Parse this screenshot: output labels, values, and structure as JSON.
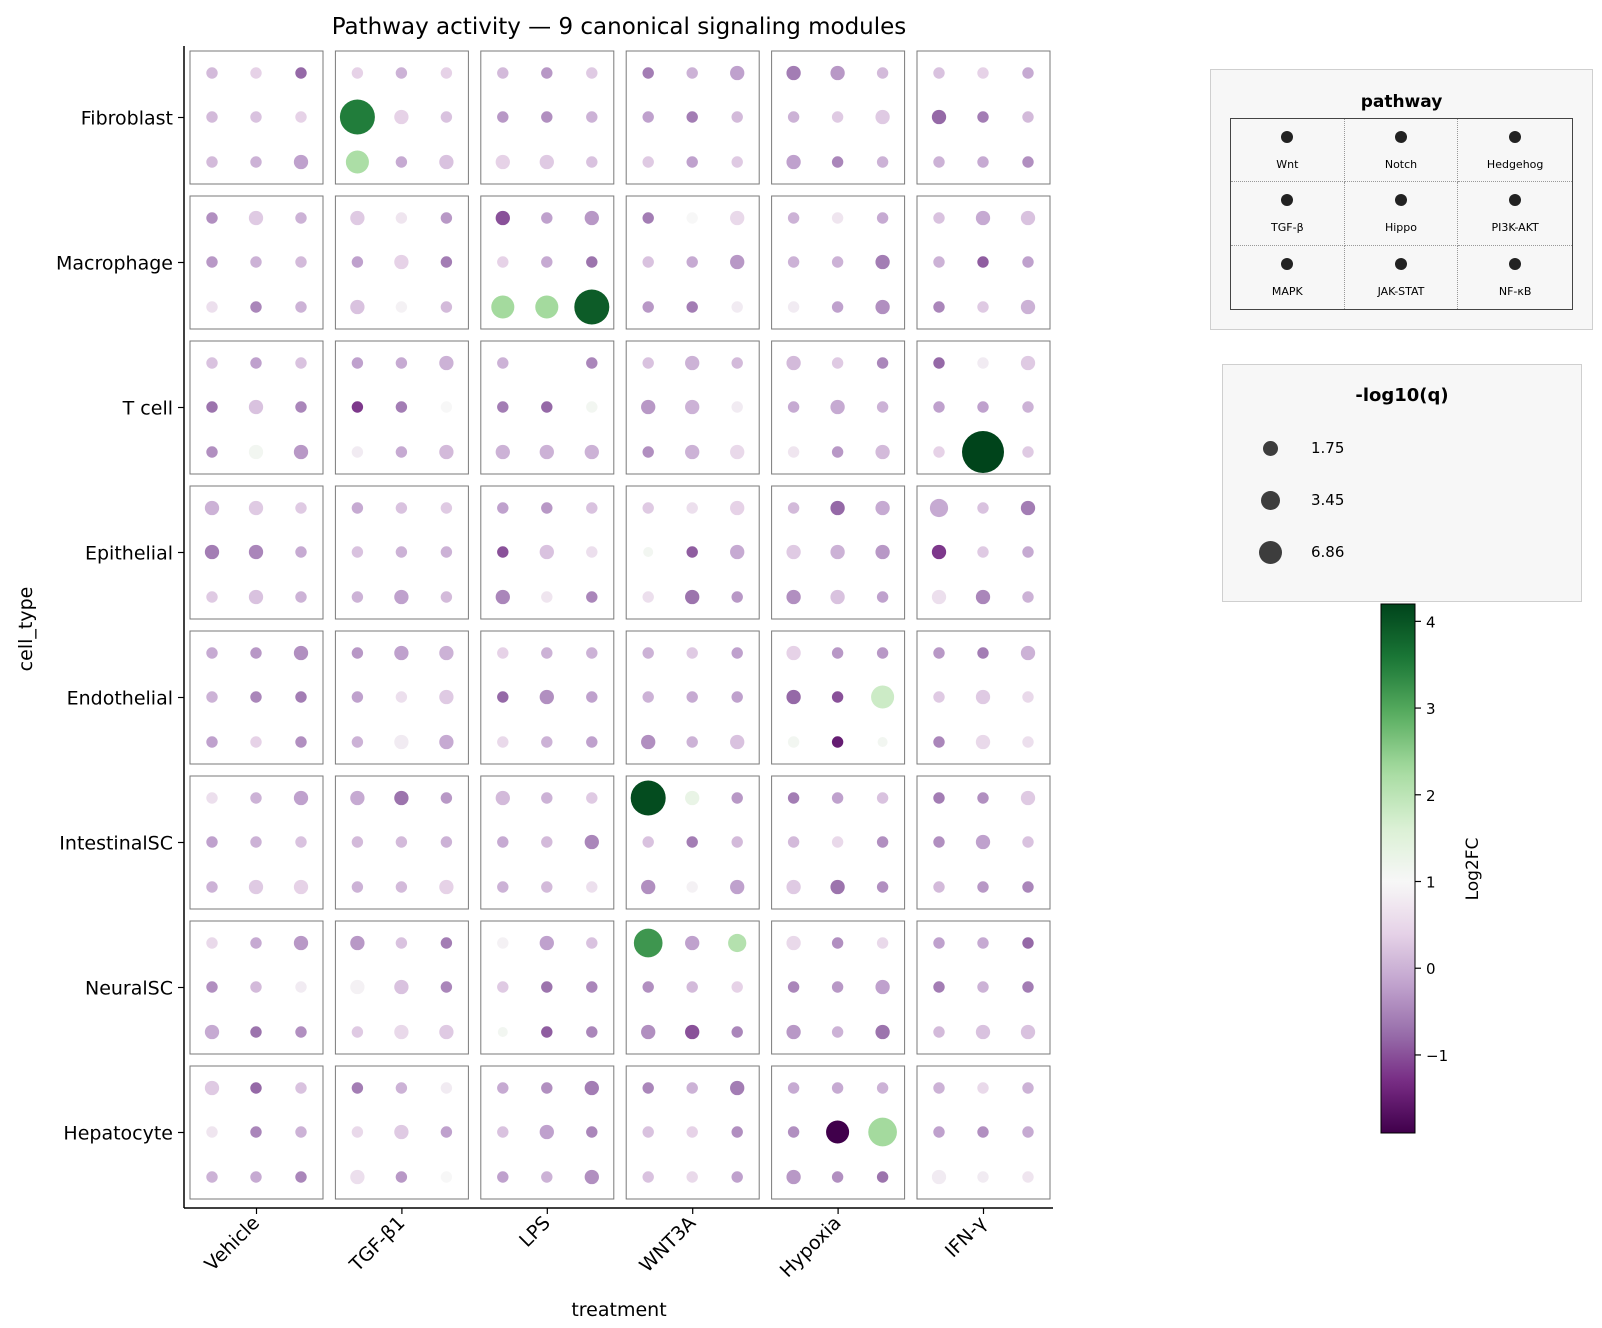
{
  "chart_data": {
    "type": "dot-matrix",
    "title": "Pathway activity — 9 canonical signaling modules",
    "xlabel": "treatment",
    "ylabel": "cell_type",
    "treatments": [
      "Vehicle",
      "TGF-β1",
      "LPS",
      "WNT3A",
      "Hypoxia",
      "IFN-γ"
    ],
    "cell_types": [
      "Fibroblast",
      "Macrophage",
      "T cell",
      "Epithelial",
      "Endothelial",
      "IntestinalSC",
      "NeuralSC",
      "Hepatocyte"
    ],
    "pathways": [
      "Wnt",
      "Notch",
      "Hedgehog",
      "TGF-β",
      "Hippo",
      "PI3K-AKT",
      "MAPK",
      "JAK-STAT",
      "NF-κB"
    ],
    "pathway_legend_title": "pathway",
    "size_legend_title": "-log10(q)",
    "size_legend_values": [
      1.75,
      3.45,
      6.86
    ],
    "size_range": [
      1,
      8
    ],
    "colorbar_label": "Log2FC",
    "color_range": [
      -1.9,
      4.2
    ],
    "colorbar_ticks": [
      -1,
      0,
      1,
      2,
      3,
      4
    ],
    "colormap": [
      "#40004b",
      "#762a83",
      "#9970ab",
      "#c2a5cf",
      "#e7d4e8",
      "#f7f7f7",
      "#d9f0d3",
      "#a6dba0",
      "#5aae61",
      "#1b7837",
      "#00441b"
    ],
    "lfc": [
      [
        [
          0.1,
          0.4,
          -0.8,
          0.1,
          0.2,
          0.4,
          0.1,
          0.0,
          -0.2
        ],
        [
          0.4,
          0.0,
          0.4,
          3.5,
          0.4,
          0.2,
          2.2,
          -0.1,
          0.2
        ],
        [
          0.1,
          -0.3,
          0.3,
          -0.3,
          -0.4,
          0.0,
          0.4,
          0.3,
          0.2
        ],
        [
          -0.6,
          0.0,
          -0.2,
          -0.2,
          -0.6,
          0.1,
          0.3,
          -0.2,
          0.3
        ],
        [
          -0.6,
          -0.3,
          0.1,
          0.0,
          0.3,
          0.3,
          -0.2,
          -0.5,
          0.0
        ],
        [
          0.2,
          0.4,
          -0.1,
          -0.8,
          -0.6,
          0.1,
          0.0,
          -0.1,
          -0.4
        ]
      ],
      [
        [
          -0.4,
          0.3,
          0.0,
          -0.3,
          0.0,
          0.1,
          0.6,
          -0.5,
          0.0
        ],
        [
          0.3,
          0.7,
          -0.3,
          -0.2,
          0.4,
          -0.6,
          0.2,
          0.9,
          0.1
        ],
        [
          -1.0,
          -0.2,
          -0.3,
          0.4,
          -0.1,
          -0.7,
          2.3,
          2.3,
          3.9
        ],
        [
          -0.6,
          1.0,
          0.5,
          0.2,
          -0.1,
          -0.3,
          -0.3,
          -0.6,
          0.8
        ],
        [
          0.0,
          0.7,
          -0.1,
          0.0,
          0.0,
          -0.6,
          0.8,
          -0.2,
          -0.4
        ],
        [
          0.2,
          -0.1,
          0.2,
          0.0,
          -0.9,
          -0.2,
          -0.5,
          0.3,
          0.0
        ]
      ],
      [
        [
          0.2,
          -0.2,
          0.2,
          -0.7,
          0.2,
          -0.5,
          -0.4,
          1.1,
          -0.3
        ],
        [
          -0.2,
          -0.1,
          0.0,
          -1.2,
          -0.6,
          1.0,
          0.8,
          -0.1,
          0.1
        ],
        [
          0.0,
          1.0,
          -0.5,
          -0.6,
          -0.8,
          1.1,
          0.0,
          0.0,
          0.0
        ],
        [
          0.2,
          0.0,
          0.1,
          -0.3,
          0.0,
          0.8,
          -0.4,
          0.0,
          0.5
        ],
        [
          0.1,
          0.3,
          -0.5,
          -0.1,
          -0.1,
          0.0,
          0.7,
          -0.3,
          0.1
        ],
        [
          -0.8,
          0.8,
          0.3,
          -0.2,
          -0.2,
          0.0,
          0.4,
          4.2,
          0.3
        ]
      ],
      [
        [
          0.0,
          0.3,
          0.3,
          -0.6,
          -0.5,
          -0.1,
          0.3,
          0.2,
          0.0
        ],
        [
          -0.1,
          0.2,
          0.3,
          0.2,
          0.0,
          0.0,
          0.0,
          -0.2,
          0.1
        ],
        [
          -0.2,
          -0.3,
          0.2,
          -1.0,
          0.2,
          0.6,
          -0.5,
          0.7,
          -0.5
        ],
        [
          0.3,
          0.6,
          0.4,
          1.1,
          -0.9,
          -0.1,
          0.6,
          -0.7,
          -0.3
        ],
        [
          0.1,
          -0.8,
          -0.1,
          0.3,
          0.0,
          -0.3,
          -0.4,
          0.2,
          -0.2
        ],
        [
          -0.1,
          0.2,
          -0.6,
          -1.2,
          0.3,
          -0.1,
          0.6,
          -0.5,
          0.0
        ]
      ],
      [
        [
          -0.1,
          -0.3,
          -0.4,
          0.0,
          -0.5,
          -0.6,
          -0.2,
          0.4,
          -0.4
        ],
        [
          -0.3,
          -0.2,
          0.0,
          -0.2,
          0.6,
          0.3,
          0.0,
          0.8,
          -0.1
        ],
        [
          0.4,
          0.0,
          0.0,
          -0.8,
          -0.4,
          -0.2,
          0.5,
          0.0,
          -0.2
        ],
        [
          0.0,
          0.3,
          -0.2,
          0.0,
          -0.1,
          -0.2,
          -0.4,
          0.0,
          0.2
        ],
        [
          0.4,
          -0.3,
          -0.3,
          -0.8,
          -1.0,
          1.8,
          1.1,
          -1.5,
          1.1
        ],
        [
          -0.3,
          -0.6,
          0.0,
          0.3,
          0.3,
          0.5,
          -0.5,
          0.5,
          0.6
        ]
      ],
      [
        [
          0.6,
          0.0,
          -0.2,
          -0.2,
          0.0,
          0.2,
          0.0,
          0.3,
          0.4
        ],
        [
          -0.1,
          -0.7,
          -0.3,
          0.1,
          0.1,
          0.0,
          0.0,
          0.1,
          0.4
        ],
        [
          0.1,
          0.0,
          0.3,
          -0.1,
          0.1,
          -0.5,
          0.0,
          0.1,
          0.6
        ],
        [
          4.1,
          1.3,
          -0.3,
          0.2,
          -0.6,
          0.1,
          -0.4,
          0.9,
          -0.2
        ],
        [
          -0.6,
          -0.2,
          0.2,
          0.1,
          0.5,
          -0.4,
          0.3,
          -0.7,
          -0.4
        ],
        [
          -0.6,
          -0.4,
          0.3,
          -0.4,
          -0.2,
          0.2,
          0.1,
          -0.3,
          -0.5
        ]
      ],
      [
        [
          0.5,
          -0.1,
          -0.3,
          -0.4,
          0.1,
          0.8,
          -0.1,
          -0.7,
          -0.4
        ],
        [
          -0.3,
          0.2,
          -0.6,
          0.9,
          0.2,
          -0.5,
          0.3,
          0.5,
          0.3
        ],
        [
          0.9,
          -0.2,
          0.2,
          0.3,
          -0.7,
          -0.5,
          1.1,
          -0.9,
          -0.5
        ],
        [
          3.2,
          -0.2,
          2.1,
          -0.4,
          0.1,
          0.4,
          -0.4,
          -1.0,
          -0.5
        ],
        [
          0.5,
          -0.4,
          0.5,
          -0.5,
          -0.3,
          -0.2,
          -0.3,
          0.0,
          -0.7
        ],
        [
          -0.2,
          -0.1,
          -0.8,
          -0.6,
          0.0,
          -0.6,
          0.1,
          0.2,
          0.2
        ]
      ],
      [
        [
          0.3,
          -0.8,
          0.2,
          0.7,
          -0.5,
          0.0,
          0.0,
          -0.1,
          -0.5
        ],
        [
          -0.6,
          0.0,
          0.8,
          0.5,
          0.3,
          -0.2,
          0.6,
          -0.3,
          1.0
        ],
        [
          -0.1,
          -0.4,
          -0.6,
          0.2,
          -0.2,
          -0.5,
          -0.2,
          0.0,
          -0.4
        ],
        [
          -0.5,
          0.0,
          -0.6,
          0.2,
          0.4,
          -0.4,
          0.2,
          0.5,
          -0.2
        ],
        [
          -0.1,
          -0.1,
          0.0,
          -0.4,
          -1.9,
          2.3,
          -0.3,
          -0.4,
          -0.7
        ],
        [
          0.0,
          0.5,
          0.0,
          -0.2,
          -0.4,
          -0.1,
          0.8,
          0.8,
          0.7
        ]
      ]
    ],
    "nlq": [
      [
        [
          2,
          2,
          2,
          2,
          2,
          2,
          2,
          2,
          3
        ],
        [
          2,
          2,
          2,
          7,
          3,
          2,
          5,
          2,
          3
        ],
        [
          2,
          2,
          2,
          2,
          2,
          2,
          3,
          3,
          2
        ],
        [
          2,
          2,
          3,
          2,
          2,
          2,
          2,
          2,
          2
        ],
        [
          3,
          3,
          2,
          2,
          2,
          3,
          3,
          2,
          2
        ],
        [
          2,
          2,
          2,
          3,
          2,
          2,
          2,
          2,
          2
        ]
      ],
      [
        [
          2,
          3,
          2,
          2,
          2,
          2,
          2,
          2,
          2
        ],
        [
          3,
          2,
          2,
          2,
          3,
          2,
          3,
          2,
          2
        ],
        [
          3,
          2,
          3,
          2,
          2,
          2,
          5,
          5,
          7
        ],
        [
          2,
          2,
          3,
          2,
          2,
          3,
          2,
          2,
          2
        ],
        [
          2,
          2,
          2,
          2,
          2,
          3,
          2,
          2,
          3
        ],
        [
          2,
          3,
          3,
          2,
          2,
          2,
          2,
          2,
          3
        ]
      ],
      [
        [
          2,
          2,
          2,
          2,
          3,
          2,
          2,
          3,
          3
        ],
        [
          2,
          2,
          3,
          2,
          2,
          2,
          2,
          2,
          3
        ],
        [
          2,
          0,
          2,
          2,
          2,
          2,
          3,
          3,
          3
        ],
        [
          2,
          3,
          2,
          3,
          3,
          2,
          2,
          3,
          3
        ],
        [
          3,
          2,
          2,
          2,
          3,
          2,
          2,
          2,
          3
        ],
        [
          2,
          2,
          3,
          2,
          2,
          2,
          2,
          8,
          2
        ]
      ],
      [
        [
          3,
          3,
          2,
          3,
          3,
          2,
          2,
          3,
          2
        ],
        [
          2,
          2,
          2,
          2,
          2,
          2,
          2,
          3,
          2
        ],
        [
          2,
          2,
          2,
          2,
          3,
          2,
          3,
          2,
          2
        ],
        [
          2,
          2,
          3,
          1,
          2,
          3,
          2,
          3,
          2
        ],
        [
          2,
          3,
          3,
          3,
          3,
          3,
          3,
          3,
          2
        ],
        [
          4,
          2,
          3,
          3,
          2,
          2,
          3,
          3,
          2
        ]
      ],
      [
        [
          2,
          2,
          3,
          2,
          2,
          2,
          2,
          2,
          2
        ],
        [
          2,
          3,
          3,
          2,
          2,
          3,
          2,
          3,
          3
        ],
        [
          2,
          2,
          2,
          2,
          3,
          2,
          2,
          2,
          2
        ],
        [
          2,
          2,
          2,
          2,
          2,
          2,
          3,
          2,
          3
        ],
        [
          3,
          2,
          2,
          3,
          2,
          5,
          2,
          2,
          1
        ],
        [
          2,
          2,
          3,
          2,
          3,
          2,
          2,
          3,
          2
        ]
      ],
      [
        [
          2,
          2,
          3,
          2,
          2,
          2,
          2,
          3,
          3
        ],
        [
          3,
          3,
          2,
          2,
          2,
          2,
          2,
          2,
          3
        ],
        [
          3,
          2,
          2,
          2,
          2,
          3,
          2,
          2,
          2
        ],
        [
          7,
          3,
          2,
          2,
          2,
          2,
          3,
          2,
          3
        ],
        [
          2,
          2,
          2,
          2,
          2,
          2,
          3,
          3,
          2
        ],
        [
          2,
          2,
          3,
          2,
          3,
          2,
          2,
          2,
          2
        ]
      ],
      [
        [
          2,
          2,
          3,
          2,
          2,
          2,
          3,
          2,
          2
        ],
        [
          3,
          2,
          2,
          3,
          3,
          2,
          2,
          3,
          3
        ],
        [
          2,
          3,
          2,
          2,
          2,
          2,
          1,
          2,
          2
        ],
        [
          6,
          3,
          4,
          2,
          2,
          2,
          3,
          3,
          2
        ],
        [
          3,
          2,
          2,
          2,
          2,
          3,
          3,
          2,
          3
        ],
        [
          2,
          2,
          2,
          2,
          2,
          2,
          2,
          3,
          3
        ]
      ],
      [
        [
          3,
          2,
          2,
          2,
          2,
          2,
          2,
          2,
          2
        ],
        [
          2,
          2,
          2,
          2,
          3,
          2,
          3,
          2,
          2
        ],
        [
          2,
          2,
          3,
          2,
          3,
          2,
          2,
          2,
          3
        ],
        [
          2,
          2,
          3,
          2,
          2,
          2,
          2,
          2,
          2
        ],
        [
          2,
          2,
          2,
          2,
          5,
          6,
          3,
          2,
          2
        ],
        [
          2,
          2,
          2,
          2,
          2,
          2,
          3,
          2,
          2
        ]
      ]
    ]
  }
}
